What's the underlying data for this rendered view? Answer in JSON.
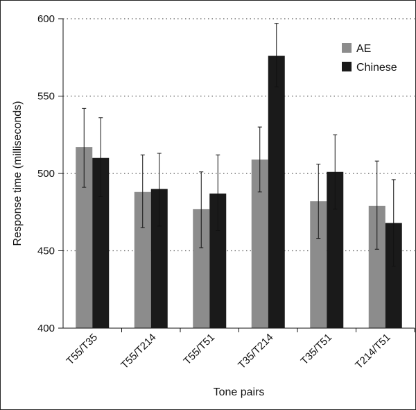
{
  "chart_data": {
    "type": "bar",
    "title": "",
    "xlabel": "Tone pairs",
    "ylabel": "Response time (milliseconds)",
    "ylim": [
      400,
      600
    ],
    "yticks": [
      400,
      450,
      500,
      550,
      600
    ],
    "grid": "horizontal dotted",
    "legend_position": "top-right",
    "categories": [
      "T55/T35",
      "T55/T214",
      "T55/T51",
      "T35/T214",
      "T35/T51",
      "T214/T51"
    ],
    "series": [
      {
        "name": "AE",
        "color": "#8c8c8c",
        "values": [
          517,
          488,
          477,
          509,
          482,
          479
        ],
        "error_low": [
          491,
          465,
          452,
          488,
          458,
          451
        ],
        "error_high": [
          542,
          512,
          501,
          530,
          506,
          508
        ]
      },
      {
        "name": "Chinese",
        "color": "#1a1a1a",
        "values": [
          510,
          490,
          487,
          576,
          501,
          468
        ],
        "error_low": [
          485,
          466,
          463,
          556,
          477,
          440
        ],
        "error_high": [
          536,
          513,
          512,
          597,
          525,
          496
        ]
      }
    ]
  }
}
